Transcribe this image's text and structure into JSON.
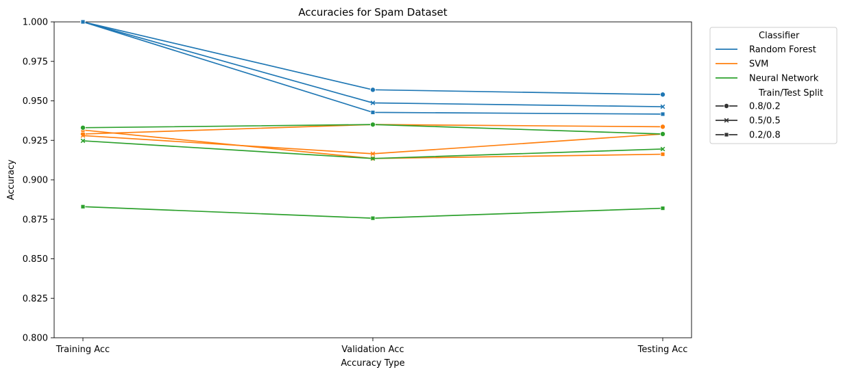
{
  "chart_data": {
    "type": "line",
    "title": "Accuracies for Spam Dataset",
    "xlabel": "Accuracy Type",
    "ylabel": "Accuracy",
    "categories": [
      "Training Acc",
      "Validation Acc",
      "Testing Acc"
    ],
    "ylim": [
      0.8,
      1.0
    ],
    "yticks": [
      "0.800",
      "0.825",
      "0.850",
      "0.875",
      "0.900",
      "0.925",
      "0.950",
      "0.975",
      "1.000"
    ],
    "grid": false,
    "legend": {
      "placement": "outside-right",
      "hue_title": "Classifier",
      "style_title": "Train/Test Split",
      "classifiers": [
        {
          "name": "Random Forest",
          "color": "#1f77b4"
        },
        {
          "name": "SVM",
          "color": "#ff7f0e"
        },
        {
          "name": "Neural Network",
          "color": "#2ca02c"
        }
      ],
      "splits": [
        {
          "name": "0.8/0.2",
          "marker": "circle"
        },
        {
          "name": "0.5/0.5",
          "marker": "x"
        },
        {
          "name": "0.2/0.8",
          "marker": "square"
        }
      ]
    },
    "series": [
      {
        "classifier": "Random Forest",
        "split": "0.8/0.2",
        "values": [
          1.0,
          0.957,
          0.954
        ]
      },
      {
        "classifier": "Random Forest",
        "split": "0.5/0.5",
        "values": [
          1.0,
          0.9487,
          0.9463
        ]
      },
      {
        "classifier": "Random Forest",
        "split": "0.2/0.8",
        "values": [
          1.0,
          0.9427,
          0.9416
        ]
      },
      {
        "classifier": "SVM",
        "split": "0.8/0.2",
        "values": [
          0.929,
          0.935,
          0.9336
        ]
      },
      {
        "classifier": "SVM",
        "split": "0.5/0.5",
        "values": [
          0.928,
          0.9165,
          0.929
        ]
      },
      {
        "classifier": "SVM",
        "split": "0.2/0.8",
        "values": [
          0.9315,
          0.9135,
          0.9162
        ]
      },
      {
        "classifier": "Neural Network",
        "split": "0.8/0.2",
        "values": [
          0.933,
          0.935,
          0.929
        ]
      },
      {
        "classifier": "Neural Network",
        "split": "0.5/0.5",
        "values": [
          0.9247,
          0.9135,
          0.9195
        ]
      },
      {
        "classifier": "Neural Network",
        "split": "0.2/0.8",
        "values": [
          0.883,
          0.8757,
          0.882
        ]
      }
    ]
  }
}
